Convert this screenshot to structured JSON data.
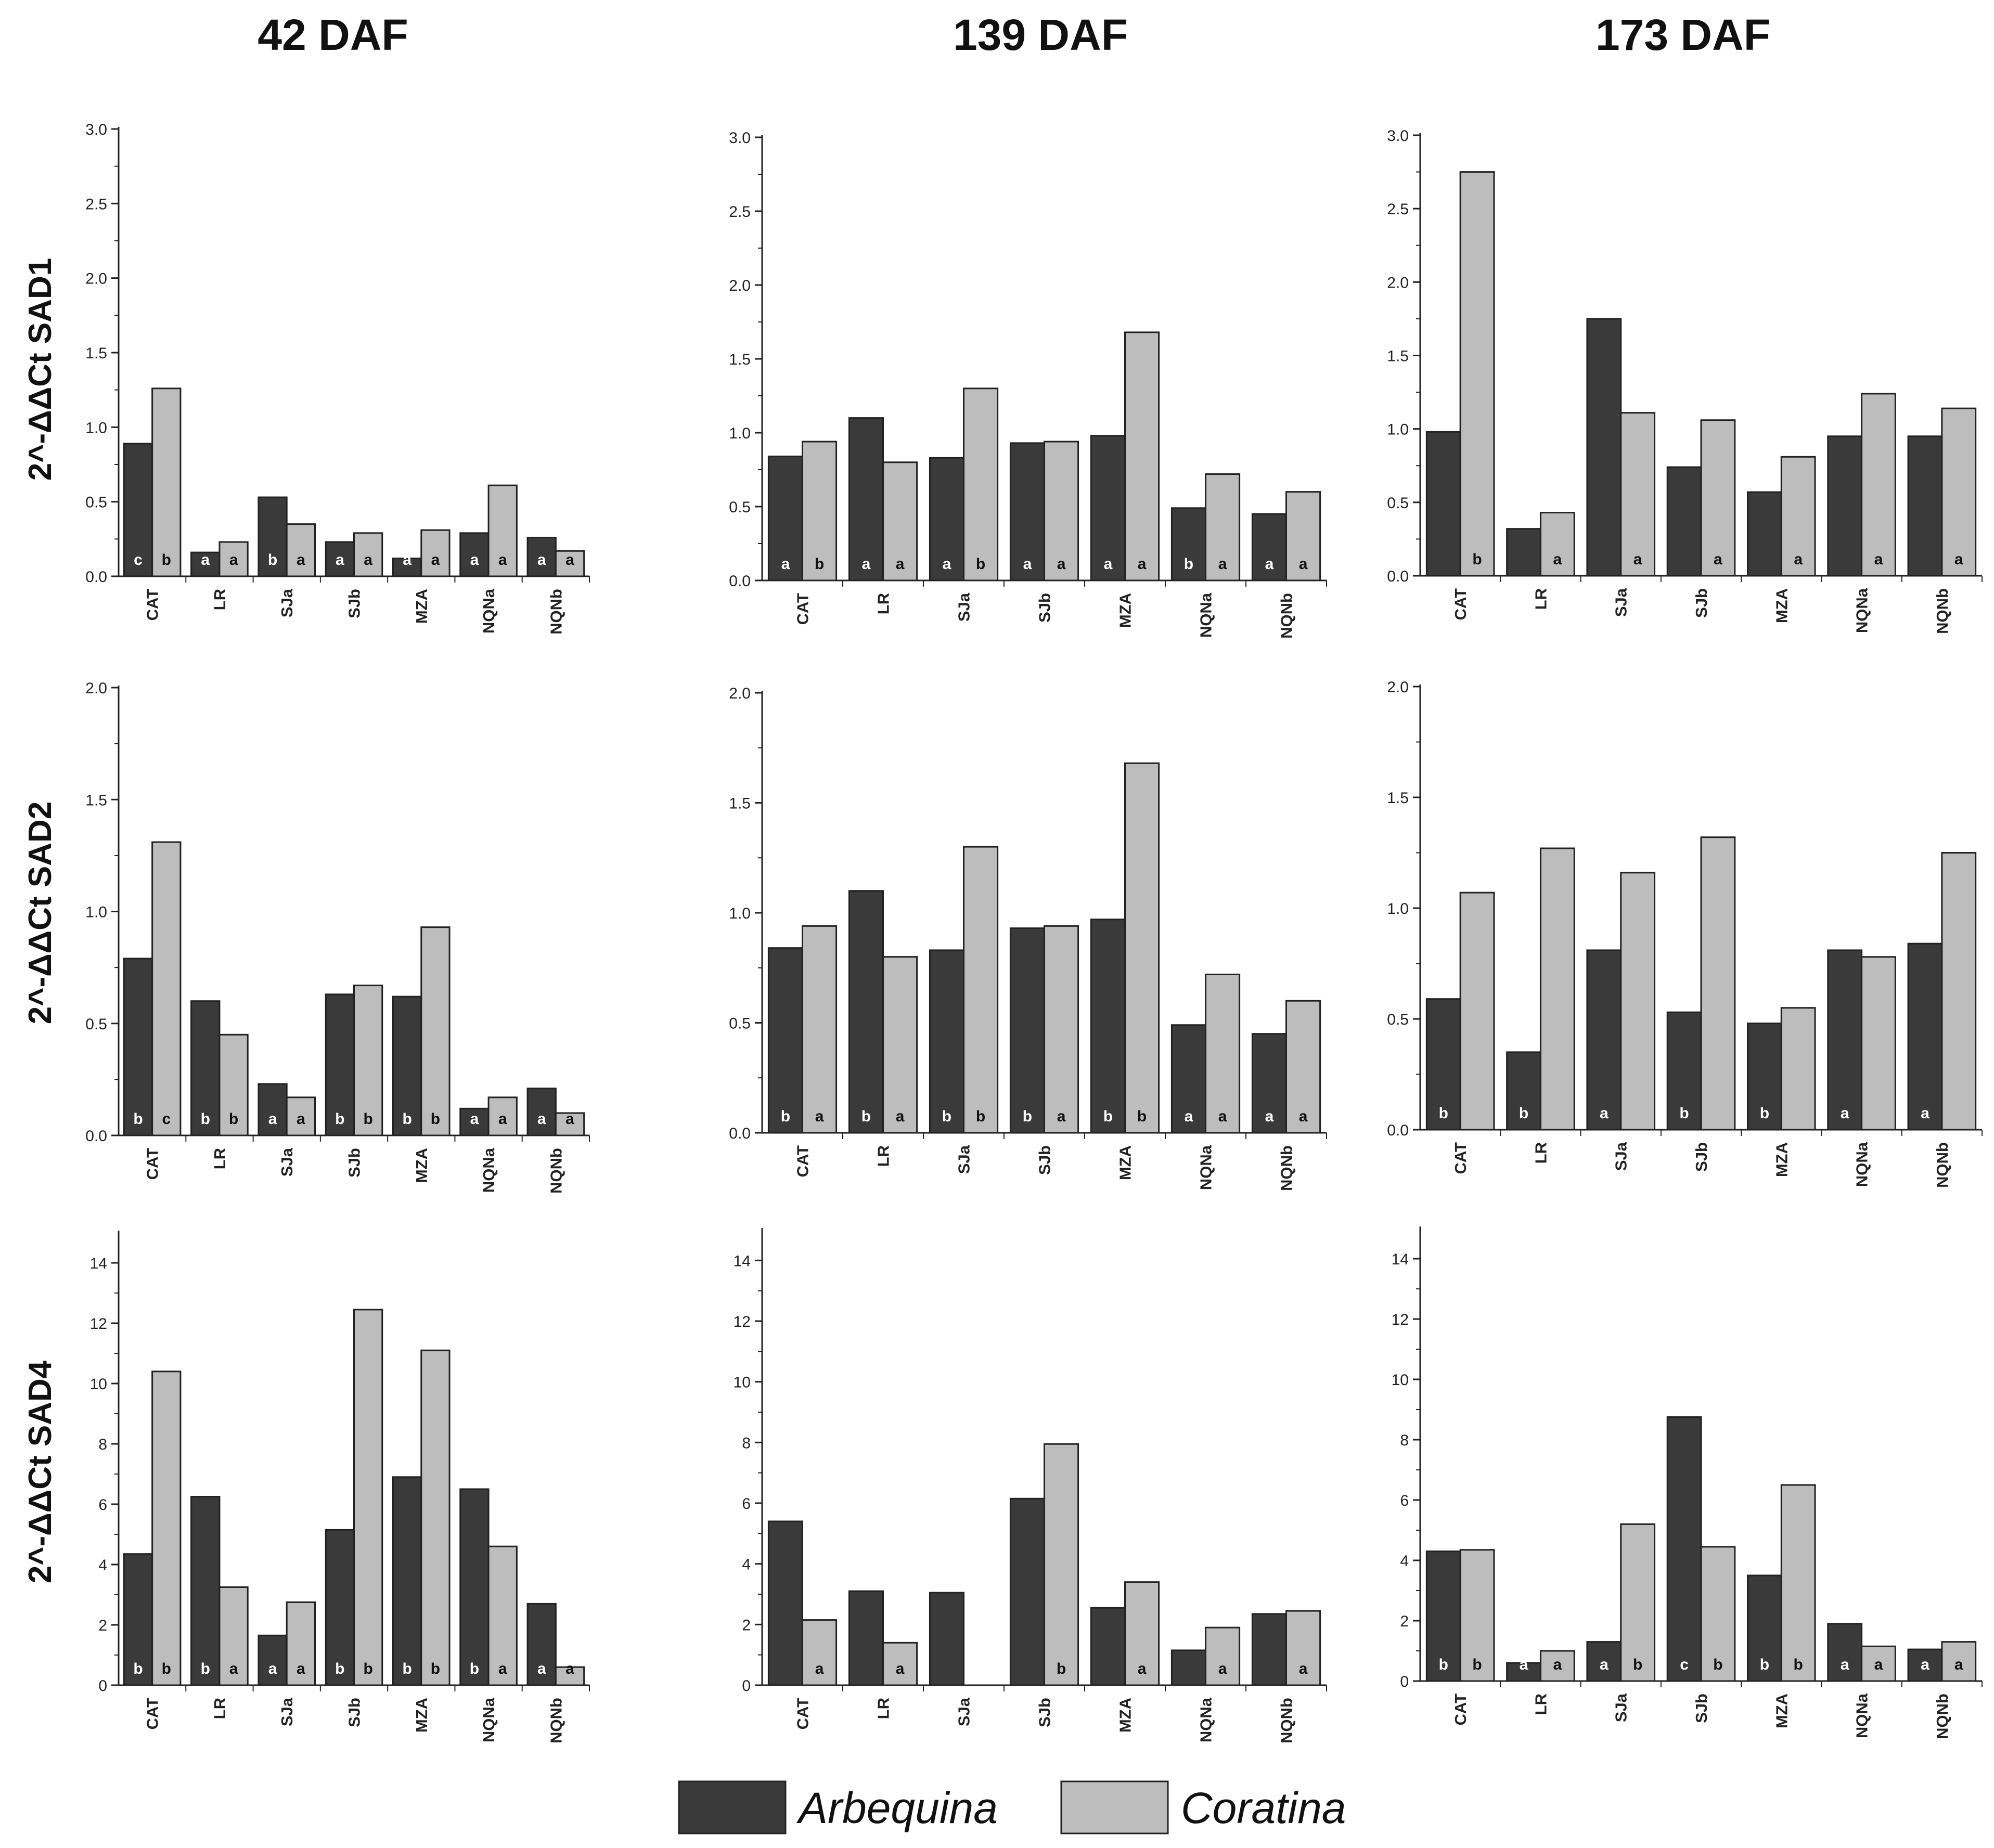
{
  "colors": {
    "Arbequina": "#3a3a3a",
    "Coratina": "#bdbdbd",
    "axis": "#222222",
    "letter_on_dark": "#ffffff",
    "letter_on_light": "#111111"
  },
  "legend": {
    "position": "bottom-center",
    "items": [
      "Arbequina",
      "Coratina"
    ]
  },
  "column_titles": [
    "42 DAF",
    "139 DAF",
    "173 DAF"
  ],
  "row_titles": [
    "2^-ΔΔCt SAD1",
    "2^-ΔΔCt SAD2",
    "2^-ΔΔCt SAD4"
  ],
  "chart_data": [
    {
      "type": "bar",
      "panel": "SAD1 42 DAF",
      "ylabel": "2^-ΔΔCt SAD1",
      "column": "42 DAF",
      "categories": [
        "CAT",
        "LR",
        "SJa",
        "SJb",
        "MZA",
        "NQNa",
        "NQNb"
      ],
      "ylim": [
        0,
        3.0
      ],
      "yticks": [
        "0.0",
        "0.5",
        "1.0",
        "1.5",
        "2.0",
        "2.5",
        "3.0"
      ],
      "series": [
        {
          "name": "Arbequina",
          "values": [
            0.89,
            0.16,
            0.53,
            0.23,
            0.12,
            0.29,
            0.26
          ],
          "letters": [
            "c",
            "a",
            "b",
            "a",
            "a",
            "a",
            "a"
          ]
        },
        {
          "name": "Coratina",
          "values": [
            1.26,
            0.23,
            0.35,
            0.29,
            0.31,
            0.61,
            0.17
          ],
          "letters": [
            "b",
            "a",
            "a",
            "a",
            "a",
            "a",
            "a"
          ]
        }
      ]
    },
    {
      "type": "bar",
      "panel": "SAD1 139 DAF",
      "ylabel": "",
      "column": "139 DAF",
      "categories": [
        "CAT",
        "LR",
        "SJa",
        "SJb",
        "MZA",
        "NQNa",
        "NQNb"
      ],
      "ylim": [
        0,
        3.0
      ],
      "yticks": [
        "0.0",
        "0.5",
        "1.0",
        "1.5",
        "2.0",
        "2.5",
        "3.0"
      ],
      "series": [
        {
          "name": "Arbequina",
          "values": [
            0.84,
            1.1,
            0.83,
            0.93,
            0.98,
            0.49,
            0.45
          ],
          "letters": [
            "a",
            "a",
            "a",
            "a",
            "a",
            "b",
            "a"
          ]
        },
        {
          "name": "Coratina",
          "values": [
            0.94,
            0.8,
            1.3,
            0.94,
            1.68,
            0.72,
            0.6
          ],
          "letters": [
            "b",
            "a",
            "b",
            "a",
            "a",
            "a",
            "a"
          ]
        }
      ]
    },
    {
      "type": "bar",
      "panel": "SAD1 173 DAF",
      "ylabel": "",
      "column": "173 DAF",
      "categories": [
        "CAT",
        "LR",
        "SJa",
        "SJb",
        "MZA",
        "NQNa",
        "NQNb"
      ],
      "ylim": [
        0,
        3.0
      ],
      "yticks": [
        "0.0",
        "0.5",
        "1.0",
        "1.5",
        "2.0",
        "2.5",
        "3.0"
      ],
      "series": [
        {
          "name": "Arbequina",
          "values": [
            0.98,
            0.32,
            1.75,
            0.74,
            0.57,
            0.95,
            0.95
          ],
          "letters": [
            "",
            "",
            "",
            "",
            "",
            "",
            ""
          ]
        },
        {
          "name": "Coratina",
          "values": [
            2.75,
            0.43,
            1.11,
            1.06,
            0.81,
            1.24,
            1.14
          ],
          "letters": [
            "b",
            "a",
            "a",
            "a",
            "a",
            "a",
            "a"
          ]
        }
      ]
    },
    {
      "type": "bar",
      "panel": "SAD2 42 DAF",
      "ylabel": "2^-ΔΔCt SAD2",
      "column": "42 DAF",
      "categories": [
        "CAT",
        "LR",
        "SJa",
        "SJb",
        "MZA",
        "NQNa",
        "NQNb"
      ],
      "ylim": [
        0,
        2.0
      ],
      "yticks": [
        "0.0",
        "0.5",
        "1.0",
        "1.5",
        "2.0"
      ],
      "series": [
        {
          "name": "Arbequina",
          "values": [
            0.79,
            0.6,
            0.23,
            0.63,
            0.62,
            0.12,
            0.21
          ],
          "letters": [
            "b",
            "b",
            "a",
            "b",
            "b",
            "a",
            "a"
          ]
        },
        {
          "name": "Coratina",
          "values": [
            1.31,
            0.45,
            0.17,
            0.67,
            0.93,
            0.17,
            0.1
          ],
          "letters": [
            "c",
            "b",
            "a",
            "b",
            "b",
            "a",
            "a"
          ]
        }
      ]
    },
    {
      "type": "bar",
      "panel": "SAD2 139 DAF",
      "ylabel": "",
      "column": "139 DAF",
      "categories": [
        "CAT",
        "LR",
        "SJa",
        "SJb",
        "MZA",
        "NQNa",
        "NQNb"
      ],
      "ylim": [
        0,
        2.0
      ],
      "yticks": [
        "0.0",
        "0.5",
        "1.0",
        "1.5",
        "2.0"
      ],
      "series": [
        {
          "name": "Arbequina",
          "values": [
            0.84,
            1.1,
            0.83,
            0.93,
            0.97,
            0.49,
            0.45
          ],
          "letters": [
            "b",
            "b",
            "b",
            "b",
            "b",
            "a",
            "a"
          ]
        },
        {
          "name": "Coratina",
          "values": [
            0.94,
            0.8,
            1.3,
            0.94,
            1.68,
            0.72,
            0.6
          ],
          "letters": [
            "a",
            "a",
            "b",
            "a",
            "b",
            "a",
            "a"
          ]
        }
      ]
    },
    {
      "type": "bar",
      "panel": "SAD2 173 DAF",
      "ylabel": "",
      "column": "173 DAF",
      "categories": [
        "CAT",
        "LR",
        "SJa",
        "SJb",
        "MZA",
        "NQNa",
        "NQNb"
      ],
      "ylim": [
        0,
        2.0
      ],
      "yticks": [
        "0.0",
        "0.5",
        "1.0",
        "1.5",
        "2.0"
      ],
      "series": [
        {
          "name": "Arbequina",
          "values": [
            0.59,
            0.35,
            0.81,
            0.53,
            0.48,
            0.81,
            0.84
          ],
          "letters": [
            "b",
            "b",
            "a",
            "b",
            "b",
            "a",
            "a"
          ]
        },
        {
          "name": "Coratina",
          "values": [
            1.07,
            1.27,
            1.16,
            1.32,
            0.55,
            0.78,
            1.25
          ],
          "letters": [
            "",
            "",
            "",
            "",
            "",
            "",
            ""
          ]
        }
      ]
    },
    {
      "type": "bar",
      "panel": "SAD4 42 DAF",
      "ylabel": "2^-ΔΔCt SAD4",
      "column": "42 DAF",
      "categories": [
        "CAT",
        "LR",
        "SJa",
        "SJb",
        "MZA",
        "NQNa",
        "NQNb"
      ],
      "ylim": [
        0,
        15
      ],
      "yticks": [
        "0",
        "2",
        "4",
        "6",
        "8",
        "10",
        "12",
        "14"
      ],
      "series": [
        {
          "name": "Arbequina",
          "values": [
            4.35,
            6.25,
            1.65,
            5.15,
            6.9,
            6.5,
            2.7
          ],
          "letters": [
            "b",
            "b",
            "a",
            "b",
            "b",
            "b",
            "a"
          ]
        },
        {
          "name": "Coratina",
          "values": [
            10.4,
            3.25,
            2.75,
            12.45,
            11.1,
            4.6,
            0.6
          ],
          "letters": [
            "b",
            "a",
            "a",
            "b",
            "b",
            "a",
            "a"
          ]
        }
      ]
    },
    {
      "type": "bar",
      "panel": "SAD4 139 DAF",
      "ylabel": "",
      "column": "139 DAF",
      "categories": [
        "CAT",
        "LR",
        "SJa",
        "SJb",
        "MZA",
        "NQNa",
        "NQNb"
      ],
      "ylim": [
        0,
        15
      ],
      "yticks": [
        "0",
        "2",
        "4",
        "6",
        "8",
        "10",
        "12",
        "14"
      ],
      "series": [
        {
          "name": "Arbequina",
          "values": [
            5.4,
            3.1,
            3.05,
            6.15,
            2.55,
            1.15,
            2.35
          ],
          "letters": [
            "",
            "",
            "",
            "",
            "",
            "",
            ""
          ]
        },
        {
          "name": "Coratina",
          "values": [
            2.15,
            1.4,
            0,
            7.95,
            3.4,
            1.9,
            2.45
          ],
          "letters": [
            "a",
            "a",
            "",
            "b",
            "a",
            "a",
            "a"
          ]
        }
      ]
    },
    {
      "type": "bar",
      "panel": "SAD4 173 DAF",
      "ylabel": "",
      "column": "173 DAF",
      "categories": [
        "CAT",
        "LR",
        "SJa",
        "SJb",
        "MZA",
        "NQNa",
        "NQNb"
      ],
      "ylim": [
        0,
        15
      ],
      "yticks": [
        "0",
        "2",
        "4",
        "6",
        "8",
        "10",
        "12",
        "14"
      ],
      "series": [
        {
          "name": "Arbequina",
          "values": [
            4.3,
            0.6,
            1.3,
            8.75,
            3.5,
            1.9,
            1.05
          ],
          "letters": [
            "b",
            "a",
            "a",
            "c",
            "b",
            "a",
            "a"
          ]
        },
        {
          "name": "Coratina",
          "values": [
            4.35,
            1.0,
            5.2,
            4.45,
            6.5,
            1.15,
            1.3
          ],
          "letters": [
            "b",
            "a",
            "b",
            "b",
            "b",
            "a",
            "a"
          ]
        }
      ]
    }
  ]
}
